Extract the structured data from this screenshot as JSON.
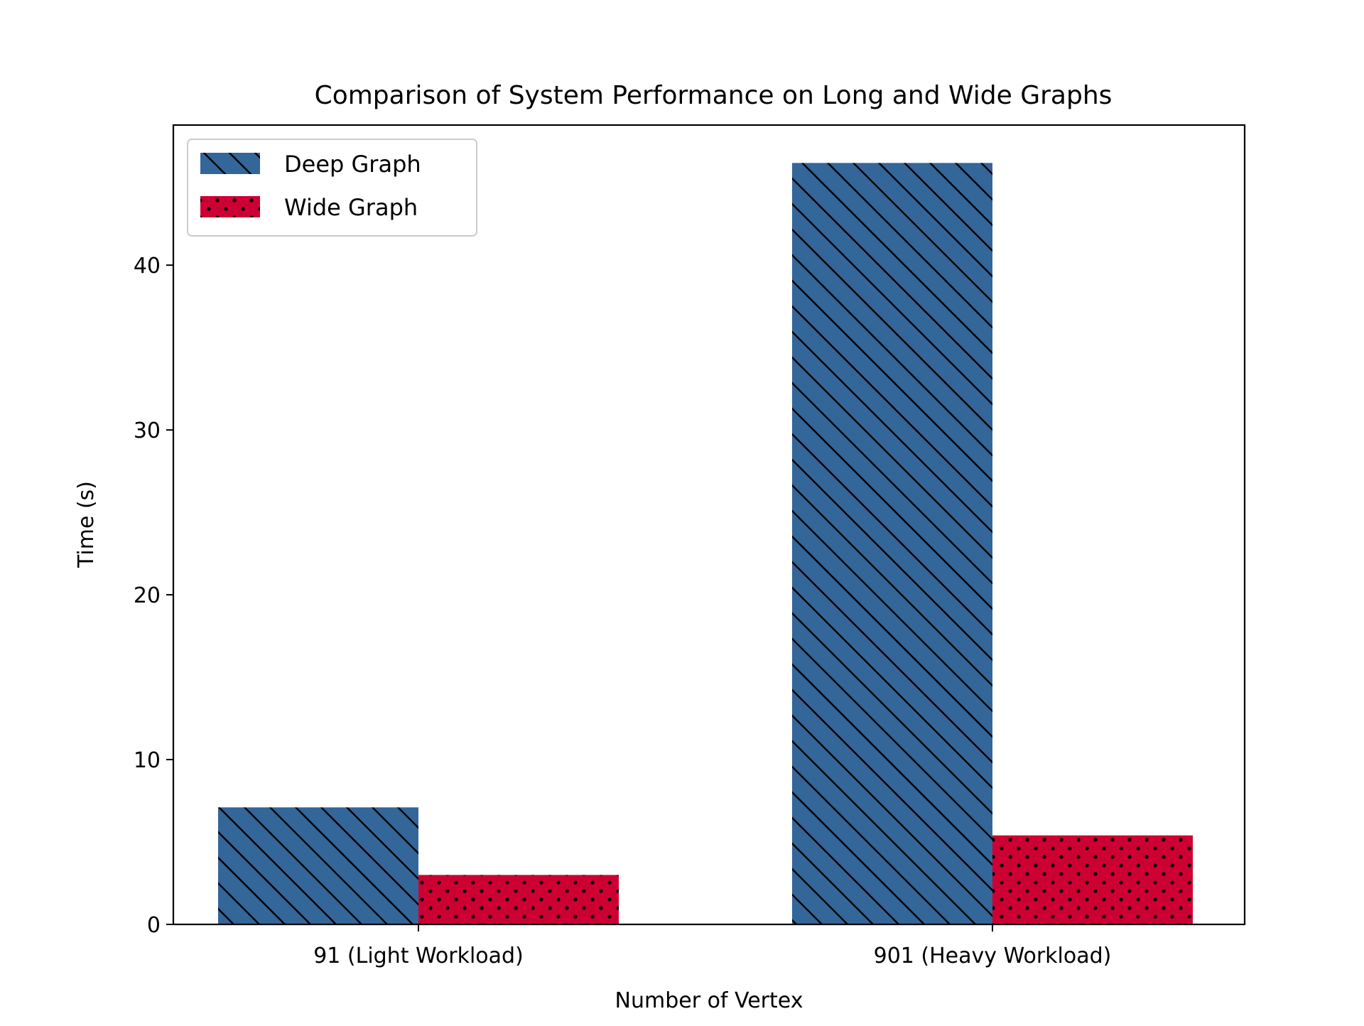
{
  "chart_data": {
    "type": "bar",
    "title": "Comparison of System Performance on Long and Wide Graphs",
    "xlabel": "Number of Vertex",
    "ylabel": "Time (s)",
    "categories": [
      "91 (Light Workload)",
      "901 (Heavy Workload)"
    ],
    "series": [
      {
        "name": "Deep Graph",
        "values": [
          7.1,
          46.2
        ],
        "color": "#336699",
        "hatch": "diagonal-lines"
      },
      {
        "name": "Wide Graph",
        "values": [
          3.0,
          5.4
        ],
        "color": "#cc0033",
        "hatch": "dots"
      }
    ],
    "ylim": [
      0,
      48.5
    ],
    "yticks": [
      0,
      10,
      20,
      30,
      40
    ],
    "grid": false,
    "legend_position": "top-left"
  }
}
